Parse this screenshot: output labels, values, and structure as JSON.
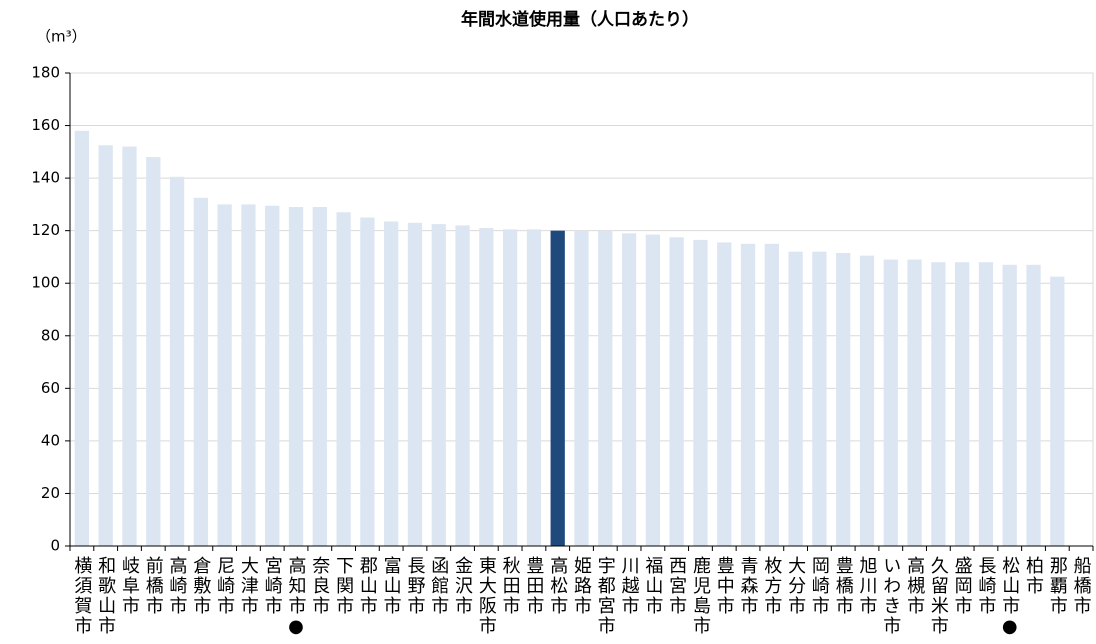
{
  "chart_data": {
    "type": "bar",
    "title": "年間水道使用量（人口あたり）",
    "unit_label": "（m³）",
    "categories": [
      "横須賀市",
      "和歌山市",
      "岐阜市",
      "前橋市",
      "高崎市",
      "倉敷市",
      "尼崎市",
      "大津市",
      "宮崎市",
      "高知市●",
      "奈良市",
      "下関市",
      "郡山市",
      "富山市",
      "長野市",
      "函館市",
      "金沢市",
      "東大阪市",
      "秋田市",
      "豊田市",
      "高松市",
      "姫路市",
      "宇都宮市",
      "川越市",
      "福山市",
      "西宮市",
      "鹿児島市",
      "豊中市",
      "青森市",
      "枚方市",
      "大分市",
      "岡崎市",
      "豊橋市",
      "旭川市",
      "いわき市",
      "高槻市",
      "久留米市",
      "盛岡市",
      "長崎市",
      "松山市●",
      "柏市",
      "那覇市",
      "船橋市"
    ],
    "values": [
      158,
      152.5,
      152,
      148,
      140.5,
      132.5,
      130,
      130,
      129.5,
      129,
      129,
      127,
      125,
      123.5,
      123,
      122.5,
      122,
      121,
      120.5,
      120.5,
      120,
      120,
      120,
      119,
      118.5,
      117.5,
      116.5,
      115.5,
      115,
      115,
      112,
      112,
      111.5,
      110.5,
      109,
      109,
      108,
      108,
      108,
      107,
      107,
      102.5,
      null
    ],
    "colors": [
      "#dce6f2",
      "#dce6f2",
      "#dce6f2",
      "#dce6f2",
      "#dce6f2",
      "#dce6f2",
      "#dce6f2",
      "#dce6f2",
      "#dce6f2",
      "#dce6f2",
      "#dce6f2",
      "#dce6f2",
      "#dce6f2",
      "#dce6f2",
      "#dce6f2",
      "#dce6f2",
      "#dce6f2",
      "#dce6f2",
      "#dce6f2",
      "#dce6f2",
      "#1f497d",
      "#dce6f2",
      "#dce6f2",
      "#dce6f2",
      "#dce6f2",
      "#dce6f2",
      "#dce6f2",
      "#dce6f2",
      "#dce6f2",
      "#dce6f2",
      "#dce6f2",
      "#dce6f2",
      "#dce6f2",
      "#dce6f2",
      "#dce6f2",
      "#dce6f2",
      "#dce6f2",
      "#dce6f2",
      "#dce6f2",
      "#dce6f2",
      "#dce6f2",
      "#dce6f2",
      "#dce6f2"
    ],
    "ylim": [
      0,
      180
    ],
    "yticks": [
      0,
      20,
      40,
      60,
      80,
      100,
      120,
      140,
      160,
      180
    ],
    "grid": true
  }
}
